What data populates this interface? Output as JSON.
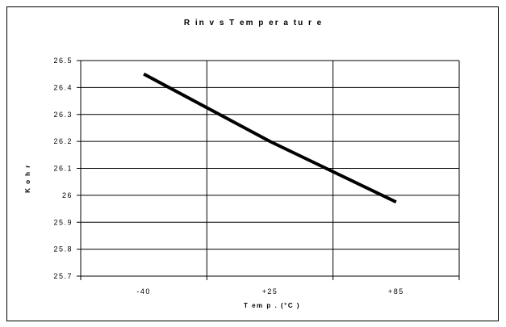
{
  "chart_data": {
    "type": "line",
    "title": "R in  v s  T em p er a tu r e",
    "xlabel": "T em p . (°C )",
    "ylabel": "K o h r",
    "categories": [
      "-40",
      "+25",
      "+85"
    ],
    "ylim": [
      25.7,
      26.5
    ],
    "yticks": [
      "26.5",
      "26.4",
      "26.3",
      "26.2",
      "26.1",
      "26",
      "25.9",
      "25.8",
      "25.7"
    ],
    "ytick_values": [
      26.5,
      26.4,
      26.3,
      26.2,
      26.1,
      26.0,
      25.9,
      25.8,
      25.7
    ],
    "grid": true,
    "line_color": "#000000",
    "series": [
      {
        "values": [
          26.45,
          26.2,
          25.975
        ]
      }
    ]
  }
}
